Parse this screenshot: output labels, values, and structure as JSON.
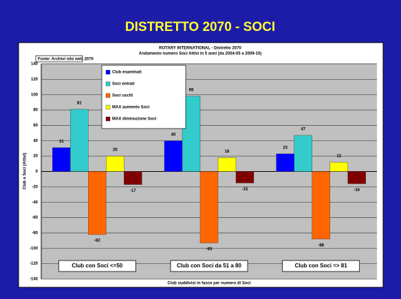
{
  "header": {
    "title": "DISTRETTO 2070 - SOCI"
  },
  "chart_data": {
    "type": "bar",
    "title": "ROTARY INTERNATIONAL - Distretto 2070",
    "subtitle": "Andamento numero Soci Attivi in 5 anni (da 2004-05 a 2009-10)",
    "source": "Fonte: Archivi sito web 2070",
    "y_label": "Club e Soci (Attivi)",
    "x_label": "Club suddivisi in fasce per numero di Soci",
    "categories": [
      "Club con Soci <=50",
      "Club con Soci da 51 a 80",
      "Club con Soci => 81"
    ],
    "series": [
      {
        "name": "Club esaminati",
        "color": "#0000ff",
        "values": [
          31,
          40,
          23
        ]
      },
      {
        "name": "Soci entrati",
        "color": "#33cccc",
        "values": [
          81,
          98,
          47
        ]
      },
      {
        "name": "Soci usciti",
        "color": "#ff6600",
        "values": [
          -82,
          -93,
          -88
        ]
      },
      {
        "name": "MAX aumento Soci",
        "color": "#ffff00",
        "values": [
          20,
          18,
          12
        ]
      },
      {
        "name": "MAX diminuzione Soci",
        "color": "#800000",
        "values": [
          -17,
          -15,
          -16
        ]
      }
    ],
    "ylim": [
      -140,
      140
    ],
    "yticks": [
      -140,
      -120,
      -100,
      -80,
      -60,
      -40,
      -20,
      0,
      20,
      40,
      60,
      80,
      100,
      120,
      140
    ],
    "grid": true
  }
}
